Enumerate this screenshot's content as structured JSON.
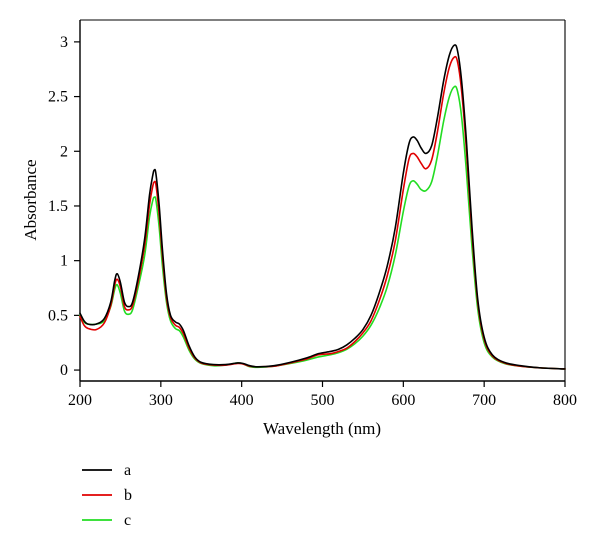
{
  "chart_data": {
    "type": "line",
    "title": "",
    "xlabel": "Wavelength (nm)",
    "ylabel": "Absorbance",
    "xlim": [
      200,
      800
    ],
    "ylim": [
      -0.1,
      3.2
    ],
    "x_ticks": [
      200,
      300,
      400,
      500,
      600,
      700,
      800
    ],
    "y_ticks": [
      0,
      0.5,
      1,
      1.5,
      2,
      2.5,
      3
    ],
    "x_tick_labels": [
      "200",
      "300",
      "400",
      "500",
      "600",
      "700",
      "800"
    ],
    "y_tick_labels": [
      "0",
      "0.5",
      "1",
      "1.5",
      "2",
      "2.5",
      "3"
    ],
    "grid": false,
    "legend_position": "below-left",
    "series": [
      {
        "name": "a",
        "color": "#000000",
        "points": [
          [
            200,
            0.52
          ],
          [
            205,
            0.45
          ],
          [
            210,
            0.42
          ],
          [
            220,
            0.42
          ],
          [
            230,
            0.47
          ],
          [
            238,
            0.62
          ],
          [
            243,
            0.82
          ],
          [
            246,
            0.88
          ],
          [
            250,
            0.8
          ],
          [
            255,
            0.62
          ],
          [
            260,
            0.58
          ],
          [
            265,
            0.62
          ],
          [
            272,
            0.85
          ],
          [
            280,
            1.2
          ],
          [
            286,
            1.6
          ],
          [
            290,
            1.78
          ],
          [
            292,
            1.83
          ],
          [
            294,
            1.79
          ],
          [
            298,
            1.5
          ],
          [
            302,
            1.1
          ],
          [
            307,
            0.7
          ],
          [
            312,
            0.5
          ],
          [
            318,
            0.44
          ],
          [
            323,
            0.42
          ],
          [
            328,
            0.36
          ],
          [
            335,
            0.22
          ],
          [
            342,
            0.12
          ],
          [
            350,
            0.07
          ],
          [
            365,
            0.05
          ],
          [
            380,
            0.05
          ],
          [
            395,
            0.065
          ],
          [
            402,
            0.06
          ],
          [
            410,
            0.04
          ],
          [
            420,
            0.03
          ],
          [
            440,
            0.04
          ],
          [
            460,
            0.07
          ],
          [
            480,
            0.11
          ],
          [
            495,
            0.15
          ],
          [
            510,
            0.17
          ],
          [
            520,
            0.19
          ],
          [
            530,
            0.23
          ],
          [
            540,
            0.29
          ],
          [
            550,
            0.37
          ],
          [
            560,
            0.5
          ],
          [
            570,
            0.7
          ],
          [
            580,
            0.95
          ],
          [
            590,
            1.3
          ],
          [
            600,
            1.8
          ],
          [
            607,
            2.07
          ],
          [
            612,
            2.13
          ],
          [
            617,
            2.1
          ],
          [
            622,
            2.03
          ],
          [
            628,
            1.98
          ],
          [
            635,
            2.05
          ],
          [
            642,
            2.3
          ],
          [
            650,
            2.65
          ],
          [
            657,
            2.88
          ],
          [
            663,
            2.97
          ],
          [
            667,
            2.92
          ],
          [
            672,
            2.65
          ],
          [
            678,
            2.1
          ],
          [
            685,
            1.3
          ],
          [
            692,
            0.65
          ],
          [
            700,
            0.3
          ],
          [
            710,
            0.14
          ],
          [
            725,
            0.07
          ],
          [
            745,
            0.04
          ],
          [
            770,
            0.02
          ],
          [
            800,
            0.01
          ]
        ]
      },
      {
        "name": "b",
        "color": "#e00000",
        "points": [
          [
            200,
            0.49
          ],
          [
            205,
            0.41
          ],
          [
            210,
            0.38
          ],
          [
            220,
            0.37
          ],
          [
            230,
            0.43
          ],
          [
            238,
            0.59
          ],
          [
            243,
            0.78
          ],
          [
            246,
            0.83
          ],
          [
            250,
            0.76
          ],
          [
            255,
            0.58
          ],
          [
            260,
            0.55
          ],
          [
            265,
            0.59
          ],
          [
            272,
            0.81
          ],
          [
            280,
            1.14
          ],
          [
            286,
            1.51
          ],
          [
            290,
            1.68
          ],
          [
            292,
            1.72
          ],
          [
            294,
            1.69
          ],
          [
            298,
            1.42
          ],
          [
            302,
            1.04
          ],
          [
            307,
            0.66
          ],
          [
            312,
            0.48
          ],
          [
            318,
            0.41
          ],
          [
            323,
            0.39
          ],
          [
            328,
            0.33
          ],
          [
            335,
            0.2
          ],
          [
            342,
            0.11
          ],
          [
            350,
            0.065
          ],
          [
            365,
            0.045
          ],
          [
            380,
            0.045
          ],
          [
            395,
            0.06
          ],
          [
            402,
            0.055
          ],
          [
            410,
            0.035
          ],
          [
            420,
            0.03
          ],
          [
            440,
            0.035
          ],
          [
            460,
            0.065
          ],
          [
            480,
            0.1
          ],
          [
            495,
            0.14
          ],
          [
            510,
            0.15
          ],
          [
            520,
            0.17
          ],
          [
            530,
            0.2
          ],
          [
            540,
            0.26
          ],
          [
            550,
            0.34
          ],
          [
            560,
            0.45
          ],
          [
            570,
            0.63
          ],
          [
            580,
            0.86
          ],
          [
            590,
            1.18
          ],
          [
            600,
            1.65
          ],
          [
            607,
            1.93
          ],
          [
            612,
            1.98
          ],
          [
            617,
            1.95
          ],
          [
            622,
            1.89
          ],
          [
            628,
            1.84
          ],
          [
            635,
            1.92
          ],
          [
            642,
            2.17
          ],
          [
            650,
            2.53
          ],
          [
            657,
            2.77
          ],
          [
            663,
            2.86
          ],
          [
            667,
            2.82
          ],
          [
            672,
            2.56
          ],
          [
            678,
            2.02
          ],
          [
            685,
            1.24
          ],
          [
            692,
            0.62
          ],
          [
            700,
            0.28
          ],
          [
            710,
            0.13
          ],
          [
            725,
            0.065
          ],
          [
            745,
            0.035
          ],
          [
            770,
            0.02
          ],
          [
            800,
            0.01
          ]
        ]
      },
      {
        "name": "c",
        "color": "#22dd22",
        "points": [
          [
            200,
            0.5
          ],
          [
            205,
            0.44
          ],
          [
            210,
            0.42
          ],
          [
            220,
            0.42
          ],
          [
            230,
            0.45
          ],
          [
            238,
            0.58
          ],
          [
            243,
            0.74
          ],
          [
            246,
            0.78
          ],
          [
            250,
            0.7
          ],
          [
            255,
            0.54
          ],
          [
            260,
            0.51
          ],
          [
            265,
            0.55
          ],
          [
            272,
            0.76
          ],
          [
            280,
            1.05
          ],
          [
            286,
            1.4
          ],
          [
            290,
            1.55
          ],
          [
            292,
            1.58
          ],
          [
            294,
            1.55
          ],
          [
            298,
            1.3
          ],
          [
            302,
            0.95
          ],
          [
            307,
            0.62
          ],
          [
            312,
            0.45
          ],
          [
            318,
            0.38
          ],
          [
            323,
            0.36
          ],
          [
            328,
            0.3
          ],
          [
            335,
            0.18
          ],
          [
            342,
            0.1
          ],
          [
            350,
            0.06
          ],
          [
            365,
            0.04
          ],
          [
            380,
            0.045
          ],
          [
            395,
            0.065
          ],
          [
            402,
            0.055
          ],
          [
            410,
            0.03
          ],
          [
            420,
            0.025
          ],
          [
            440,
            0.035
          ],
          [
            460,
            0.06
          ],
          [
            480,
            0.09
          ],
          [
            495,
            0.12
          ],
          [
            510,
            0.14
          ],
          [
            520,
            0.16
          ],
          [
            530,
            0.19
          ],
          [
            540,
            0.24
          ],
          [
            550,
            0.31
          ],
          [
            560,
            0.41
          ],
          [
            570,
            0.56
          ],
          [
            580,
            0.76
          ],
          [
            590,
            1.05
          ],
          [
            600,
            1.45
          ],
          [
            607,
            1.68
          ],
          [
            612,
            1.73
          ],
          [
            617,
            1.7
          ],
          [
            622,
            1.65
          ],
          [
            628,
            1.64
          ],
          [
            635,
            1.72
          ],
          [
            642,
            1.95
          ],
          [
            650,
            2.28
          ],
          [
            657,
            2.5
          ],
          [
            663,
            2.59
          ],
          [
            667,
            2.55
          ],
          [
            672,
            2.32
          ],
          [
            678,
            1.82
          ],
          [
            685,
            1.12
          ],
          [
            692,
            0.56
          ],
          [
            700,
            0.25
          ],
          [
            710,
            0.12
          ],
          [
            725,
            0.06
          ],
          [
            745,
            0.035
          ],
          [
            770,
            0.02
          ],
          [
            800,
            0.01
          ]
        ]
      }
    ]
  }
}
